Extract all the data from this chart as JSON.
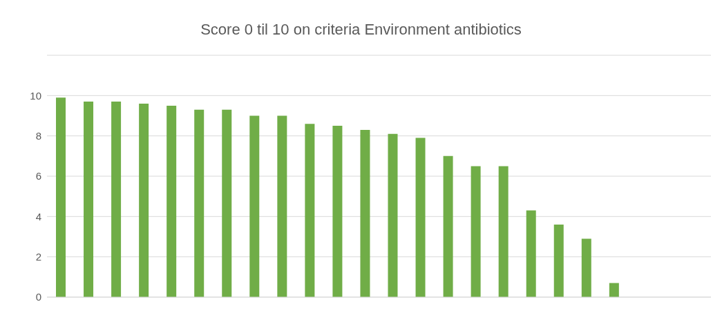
{
  "chart_data": {
    "type": "bar",
    "title": "Score 0 til 10 on criteria Environment antibiotics",
    "categories": [
      null,
      null,
      null,
      null,
      null,
      null,
      null,
      null,
      null,
      null,
      null,
      null,
      null,
      null,
      null,
      null,
      null,
      null,
      null,
      null,
      null,
      null,
      null,
      null
    ],
    "values": [
      9.9,
      9.7,
      9.7,
      9.6,
      9.5,
      9.3,
      9.3,
      9.0,
      9.0,
      8.6,
      8.5,
      8.3,
      8.1,
      7.9,
      7.0,
      6.5,
      6.5,
      4.3,
      3.6,
      2.9,
      0.7,
      0,
      0,
      0
    ],
    "color": "#70ad47",
    "ylim": [
      0,
      12
    ],
    "yticks": [
      0,
      2,
      4,
      6,
      8,
      10,
      {
        "value": 12,
        "label": null
      }
    ],
    "grid": "y"
  }
}
